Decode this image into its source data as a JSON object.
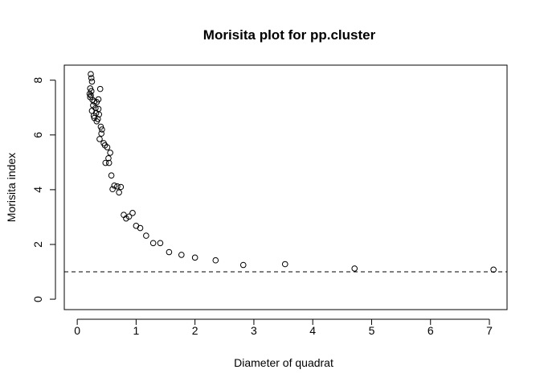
{
  "chart_data": {
    "type": "scatter",
    "title": "Morisita plot for pp.cluster",
    "xlabel": "Diameter of quadrat",
    "ylabel": "Morisita index",
    "xlim": [
      -0.22,
      7.3
    ],
    "ylim": [
      -0.38,
      8.55
    ],
    "x_ticks": [
      0,
      1,
      2,
      3,
      4,
      5,
      6,
      7
    ],
    "x_tick_labels": [
      "0",
      "1",
      "2",
      "3",
      "4",
      "5",
      "6",
      "7"
    ],
    "y_ticks": [
      0,
      2,
      4,
      6,
      8
    ],
    "y_tick_labels": [
      "0",
      "2",
      "4",
      "6",
      "8"
    ],
    "grid": false,
    "reference_line": {
      "y": 1,
      "style": "dashed"
    },
    "marker": "open-circle",
    "points": [
      [
        0.23,
        8.22
      ],
      [
        0.24,
        8.08
      ],
      [
        0.25,
        7.95
      ],
      [
        0.22,
        7.7
      ],
      [
        0.24,
        7.6
      ],
      [
        0.21,
        7.5
      ],
      [
        0.23,
        7.45
      ],
      [
        0.22,
        7.38
      ],
      [
        0.26,
        7.28
      ],
      [
        0.29,
        7.22
      ],
      [
        0.33,
        7.2
      ],
      [
        0.27,
        7.08
      ],
      [
        0.31,
        6.98
      ],
      [
        0.36,
        6.95
      ],
      [
        0.25,
        6.88
      ],
      [
        0.32,
        6.8
      ],
      [
        0.37,
        6.75
      ],
      [
        0.28,
        6.7
      ],
      [
        0.29,
        6.62
      ],
      [
        0.35,
        6.58
      ],
      [
        0.33,
        6.5
      ],
      [
        0.39,
        7.68
      ],
      [
        0.36,
        7.3
      ],
      [
        0.4,
        6.3
      ],
      [
        0.42,
        6.2
      ],
      [
        0.41,
        6.05
      ],
      [
        0.38,
        5.85
      ],
      [
        0.45,
        5.7
      ],
      [
        0.47,
        5.62
      ],
      [
        0.51,
        5.55
      ],
      [
        0.56,
        5.35
      ],
      [
        0.53,
        5.15
      ],
      [
        0.48,
        4.98
      ],
      [
        0.54,
        4.98
      ],
      [
        0.58,
        4.52
      ],
      [
        0.63,
        4.15
      ],
      [
        0.68,
        4.12
      ],
      [
        0.6,
        4.02
      ],
      [
        0.74,
        4.1
      ],
      [
        0.71,
        3.9
      ],
      [
        0.79,
        3.08
      ],
      [
        0.83,
        2.95
      ],
      [
        0.88,
        3.02
      ],
      [
        0.94,
        3.15
      ],
      [
        1.0,
        2.68
      ],
      [
        1.07,
        2.6
      ],
      [
        1.17,
        2.32
      ],
      [
        1.29,
        2.05
      ],
      [
        1.41,
        2.05
      ],
      [
        1.56,
        1.72
      ],
      [
        1.77,
        1.62
      ],
      [
        2.0,
        1.52
      ],
      [
        2.35,
        1.42
      ],
      [
        2.82,
        1.25
      ],
      [
        3.53,
        1.28
      ],
      [
        4.71,
        1.12
      ],
      [
        7.07,
        1.08
      ]
    ]
  }
}
